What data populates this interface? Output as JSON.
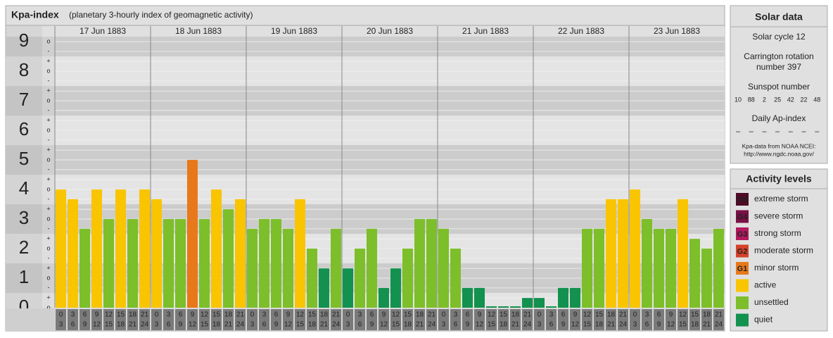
{
  "chart_data": {
    "type": "bar",
    "title": "Kpa-index",
    "subtitle": "(planetary 3-hourly index of geomagnetic activity)",
    "days": [
      "17 Jun 1883",
      "18 Jun 1883",
      "19 Jun 1883",
      "20 Jun 1883",
      "21 Jun 1883",
      "22 Jun 1883",
      "23 Jun 1883"
    ],
    "hours_from": [
      0,
      3,
      6,
      9,
      12,
      15,
      18,
      21
    ],
    "hours_to": [
      3,
      6,
      9,
      12,
      15,
      18,
      21,
      24
    ],
    "values": [
      4,
      3.67,
      2.67,
      4,
      3,
      4,
      3,
      4,
      3.67,
      3,
      3,
      5,
      3,
      4,
      3.33,
      3.67,
      2.67,
      3,
      3,
      2.67,
      3.67,
      2,
      1.33,
      2.67,
      1.33,
      2,
      2.67,
      0.67,
      1.33,
      2,
      3,
      3,
      2.67,
      2,
      0.67,
      0.67,
      0,
      0,
      0,
      0.33,
      0.33,
      0,
      0.67,
      0.67,
      2.67,
      2.67,
      3.67,
      3.67,
      4,
      3,
      2.67,
      2.67,
      3.67,
      2.33,
      2,
      2.67
    ],
    "colors": [
      "#f9c400",
      "#f9c400",
      "#7cbf2a",
      "#f9c400",
      "#7cbf2a",
      "#f9c400",
      "#7cbf2a",
      "#f9c400",
      "#f9c400",
      "#7cbf2a",
      "#7cbf2a",
      "#e8781a",
      "#7cbf2a",
      "#f9c400",
      "#7cbf2a",
      "#f9c400",
      "#7cbf2a",
      "#7cbf2a",
      "#7cbf2a",
      "#7cbf2a",
      "#f9c400",
      "#7cbf2a",
      "#13914f",
      "#7cbf2a",
      "#13914f",
      "#7cbf2a",
      "#7cbf2a",
      "#13914f",
      "#13914f",
      "#7cbf2a",
      "#7cbf2a",
      "#7cbf2a",
      "#7cbf2a",
      "#7cbf2a",
      "#13914f",
      "#13914f",
      "#13914f",
      "#13914f",
      "#13914f",
      "#13914f",
      "#13914f",
      "#13914f",
      "#13914f",
      "#13914f",
      "#7cbf2a",
      "#7cbf2a",
      "#f9c400",
      "#f9c400",
      "#f9c400",
      "#7cbf2a",
      "#7cbf2a",
      "#7cbf2a",
      "#f9c400",
      "#7cbf2a",
      "#7cbf2a",
      "#7cbf2a"
    ],
    "ylim": [
      0,
      9.17
    ],
    "yticks": [
      0,
      1,
      2,
      3,
      4,
      5,
      6,
      7,
      8,
      9
    ],
    "yminor": [
      {
        "value": 0,
        "label": "o"
      },
      {
        "value": 0.33,
        "label": "+"
      },
      {
        "value": 0.67,
        "label": "-"
      },
      {
        "value": 1,
        "label": "o"
      },
      {
        "value": 1.33,
        "label": "+"
      },
      {
        "value": 1.67,
        "label": "-"
      },
      {
        "value": 2,
        "label": "o"
      },
      {
        "value": 2.33,
        "label": "+"
      },
      {
        "value": 2.67,
        "label": "-"
      },
      {
        "value": 3,
        "label": "o"
      },
      {
        "value": 3.33,
        "label": "+"
      },
      {
        "value": 3.67,
        "label": "-"
      },
      {
        "value": 4,
        "label": "o"
      },
      {
        "value": 4.33,
        "label": "+"
      },
      {
        "value": 4.67,
        "label": "-"
      },
      {
        "value": 5,
        "label": "o"
      },
      {
        "value": 5.33,
        "label": "+"
      },
      {
        "value": 5.67,
        "label": "-"
      },
      {
        "value": 6,
        "label": "o"
      },
      {
        "value": 6.33,
        "label": "+"
      },
      {
        "value": 6.67,
        "label": "-"
      },
      {
        "value": 7,
        "label": "o"
      },
      {
        "value": 7.33,
        "label": "+"
      },
      {
        "value": 7.67,
        "label": "-"
      },
      {
        "value": 8,
        "label": "o"
      },
      {
        "value": 8.33,
        "label": "+"
      },
      {
        "value": 8.67,
        "label": "-"
      },
      {
        "value": 9,
        "label": "o"
      }
    ],
    "grid": true
  },
  "solar_panel": {
    "title": "Solar data",
    "cycle": "Solar cycle 12",
    "rotation": [
      "Carrington rotation",
      "number 397"
    ],
    "sunspot_label": "Sunspot number",
    "sunspot_numbers": [
      10,
      88,
      2,
      25,
      42,
      22,
      48
    ],
    "ap_label": "Daily Ap-index",
    "ap_values": [
      "–",
      "–",
      "–",
      "–",
      "–",
      "–",
      "–"
    ],
    "source": [
      "Kpa-data from NOAA NCEI:",
      "http://www.ngdc.noaa.gov/"
    ]
  },
  "legend": {
    "title": "Activity levels",
    "items": [
      {
        "badge": "G5",
        "name": "extreme storm",
        "color": "#4f0a26"
      },
      {
        "badge": "G4",
        "name": "severe storm",
        "color": "#7a1044"
      },
      {
        "badge": "G3",
        "name": "strong storm",
        "color": "#b3185e"
      },
      {
        "badge": "G2",
        "name": "moderate storm",
        "color": "#d6412a"
      },
      {
        "badge": "G1",
        "name": "minor storm",
        "color": "#e8781a"
      },
      {
        "name": "active",
        "color": "#f9c400"
      },
      {
        "name": "unsettled",
        "color": "#7cbf2a"
      },
      {
        "name": "quiet",
        "color": "#13914f"
      }
    ]
  }
}
